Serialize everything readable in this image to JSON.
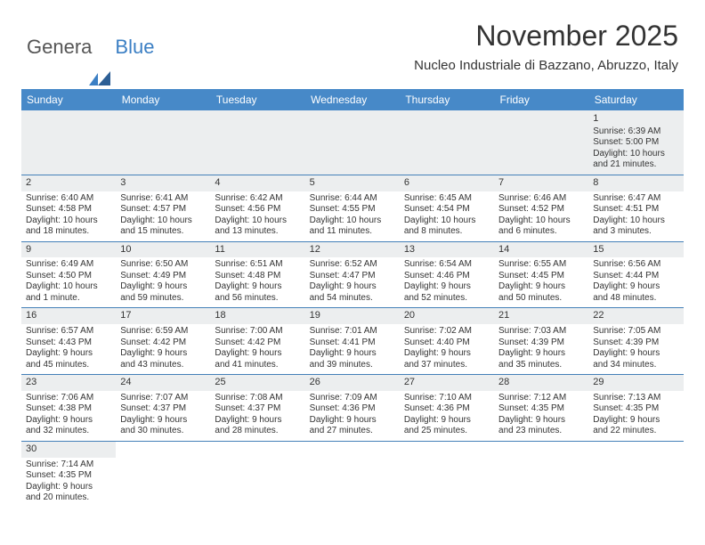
{
  "logo": {
    "part1": "Genera",
    "part2": "Blue"
  },
  "title": "November 2025",
  "location": "Nucleo Industriale di Bazzano, Abruzzo, Italy",
  "colors": {
    "header_bg": "#4789c8",
    "header_text": "#ffffff",
    "grid_line": "#4480b8",
    "shade": "#eceeef",
    "text": "#333333",
    "logo_blue": "#3b7fc4"
  },
  "fonts": {
    "title_size": 32,
    "location_size": 15,
    "dayheader_size": 12,
    "cell_size": 10
  },
  "day_headers": [
    "Sunday",
    "Monday",
    "Tuesday",
    "Wednesday",
    "Thursday",
    "Friday",
    "Saturday"
  ],
  "weeks": [
    [
      null,
      null,
      null,
      null,
      null,
      null,
      {
        "n": "1",
        "sunrise": "Sunrise: 6:39 AM",
        "sunset": "Sunset: 5:00 PM",
        "daylight1": "Daylight: 10 hours",
        "daylight2": "and 21 minutes."
      }
    ],
    [
      {
        "n": "2",
        "sunrise": "Sunrise: 6:40 AM",
        "sunset": "Sunset: 4:58 PM",
        "daylight1": "Daylight: 10 hours",
        "daylight2": "and 18 minutes."
      },
      {
        "n": "3",
        "sunrise": "Sunrise: 6:41 AM",
        "sunset": "Sunset: 4:57 PM",
        "daylight1": "Daylight: 10 hours",
        "daylight2": "and 15 minutes."
      },
      {
        "n": "4",
        "sunrise": "Sunrise: 6:42 AM",
        "sunset": "Sunset: 4:56 PM",
        "daylight1": "Daylight: 10 hours",
        "daylight2": "and 13 minutes."
      },
      {
        "n": "5",
        "sunrise": "Sunrise: 6:44 AM",
        "sunset": "Sunset: 4:55 PM",
        "daylight1": "Daylight: 10 hours",
        "daylight2": "and 11 minutes."
      },
      {
        "n": "6",
        "sunrise": "Sunrise: 6:45 AM",
        "sunset": "Sunset: 4:54 PM",
        "daylight1": "Daylight: 10 hours",
        "daylight2": "and 8 minutes."
      },
      {
        "n": "7",
        "sunrise": "Sunrise: 6:46 AM",
        "sunset": "Sunset: 4:52 PM",
        "daylight1": "Daylight: 10 hours",
        "daylight2": "and 6 minutes."
      },
      {
        "n": "8",
        "sunrise": "Sunrise: 6:47 AM",
        "sunset": "Sunset: 4:51 PM",
        "daylight1": "Daylight: 10 hours",
        "daylight2": "and 3 minutes."
      }
    ],
    [
      {
        "n": "9",
        "sunrise": "Sunrise: 6:49 AM",
        "sunset": "Sunset: 4:50 PM",
        "daylight1": "Daylight: 10 hours",
        "daylight2": "and 1 minute."
      },
      {
        "n": "10",
        "sunrise": "Sunrise: 6:50 AM",
        "sunset": "Sunset: 4:49 PM",
        "daylight1": "Daylight: 9 hours",
        "daylight2": "and 59 minutes."
      },
      {
        "n": "11",
        "sunrise": "Sunrise: 6:51 AM",
        "sunset": "Sunset: 4:48 PM",
        "daylight1": "Daylight: 9 hours",
        "daylight2": "and 56 minutes."
      },
      {
        "n": "12",
        "sunrise": "Sunrise: 6:52 AM",
        "sunset": "Sunset: 4:47 PM",
        "daylight1": "Daylight: 9 hours",
        "daylight2": "and 54 minutes."
      },
      {
        "n": "13",
        "sunrise": "Sunrise: 6:54 AM",
        "sunset": "Sunset: 4:46 PM",
        "daylight1": "Daylight: 9 hours",
        "daylight2": "and 52 minutes."
      },
      {
        "n": "14",
        "sunrise": "Sunrise: 6:55 AM",
        "sunset": "Sunset: 4:45 PM",
        "daylight1": "Daylight: 9 hours",
        "daylight2": "and 50 minutes."
      },
      {
        "n": "15",
        "sunrise": "Sunrise: 6:56 AM",
        "sunset": "Sunset: 4:44 PM",
        "daylight1": "Daylight: 9 hours",
        "daylight2": "and 48 minutes."
      }
    ],
    [
      {
        "n": "16",
        "sunrise": "Sunrise: 6:57 AM",
        "sunset": "Sunset: 4:43 PM",
        "daylight1": "Daylight: 9 hours",
        "daylight2": "and 45 minutes."
      },
      {
        "n": "17",
        "sunrise": "Sunrise: 6:59 AM",
        "sunset": "Sunset: 4:42 PM",
        "daylight1": "Daylight: 9 hours",
        "daylight2": "and 43 minutes."
      },
      {
        "n": "18",
        "sunrise": "Sunrise: 7:00 AM",
        "sunset": "Sunset: 4:42 PM",
        "daylight1": "Daylight: 9 hours",
        "daylight2": "and 41 minutes."
      },
      {
        "n": "19",
        "sunrise": "Sunrise: 7:01 AM",
        "sunset": "Sunset: 4:41 PM",
        "daylight1": "Daylight: 9 hours",
        "daylight2": "and 39 minutes."
      },
      {
        "n": "20",
        "sunrise": "Sunrise: 7:02 AM",
        "sunset": "Sunset: 4:40 PM",
        "daylight1": "Daylight: 9 hours",
        "daylight2": "and 37 minutes."
      },
      {
        "n": "21",
        "sunrise": "Sunrise: 7:03 AM",
        "sunset": "Sunset: 4:39 PM",
        "daylight1": "Daylight: 9 hours",
        "daylight2": "and 35 minutes."
      },
      {
        "n": "22",
        "sunrise": "Sunrise: 7:05 AM",
        "sunset": "Sunset: 4:39 PM",
        "daylight1": "Daylight: 9 hours",
        "daylight2": "and 34 minutes."
      }
    ],
    [
      {
        "n": "23",
        "sunrise": "Sunrise: 7:06 AM",
        "sunset": "Sunset: 4:38 PM",
        "daylight1": "Daylight: 9 hours",
        "daylight2": "and 32 minutes."
      },
      {
        "n": "24",
        "sunrise": "Sunrise: 7:07 AM",
        "sunset": "Sunset: 4:37 PM",
        "daylight1": "Daylight: 9 hours",
        "daylight2": "and 30 minutes."
      },
      {
        "n": "25",
        "sunrise": "Sunrise: 7:08 AM",
        "sunset": "Sunset: 4:37 PM",
        "daylight1": "Daylight: 9 hours",
        "daylight2": "and 28 minutes."
      },
      {
        "n": "26",
        "sunrise": "Sunrise: 7:09 AM",
        "sunset": "Sunset: 4:36 PM",
        "daylight1": "Daylight: 9 hours",
        "daylight2": "and 27 minutes."
      },
      {
        "n": "27",
        "sunrise": "Sunrise: 7:10 AM",
        "sunset": "Sunset: 4:36 PM",
        "daylight1": "Daylight: 9 hours",
        "daylight2": "and 25 minutes."
      },
      {
        "n": "28",
        "sunrise": "Sunrise: 7:12 AM",
        "sunset": "Sunset: 4:35 PM",
        "daylight1": "Daylight: 9 hours",
        "daylight2": "and 23 minutes."
      },
      {
        "n": "29",
        "sunrise": "Sunrise: 7:13 AM",
        "sunset": "Sunset: 4:35 PM",
        "daylight1": "Daylight: 9 hours",
        "daylight2": "and 22 minutes."
      }
    ],
    [
      {
        "n": "30",
        "sunrise": "Sunrise: 7:14 AM",
        "sunset": "Sunset: 4:35 PM",
        "daylight1": "Daylight: 9 hours",
        "daylight2": "and 20 minutes."
      },
      null,
      null,
      null,
      null,
      null,
      null
    ]
  ]
}
